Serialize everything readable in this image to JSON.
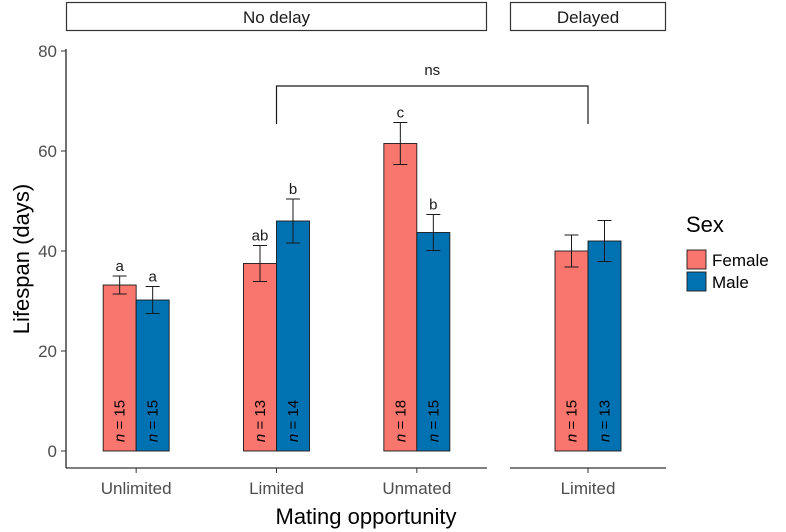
{
  "chart_data": {
    "type": "bar",
    "xlabel": "Mating opportunity",
    "ylabel": "Lifespan (days)",
    "ylim": [
      0,
      80
    ],
    "yticks": [
      0,
      20,
      40,
      60,
      80
    ],
    "grid": false,
    "legend": {
      "title": "Sex",
      "position": "right",
      "entries": [
        {
          "name": "Female",
          "color": "#F8766D"
        },
        {
          "name": "Male",
          "color": "#0072B2"
        }
      ]
    },
    "panels": [
      {
        "strip": "No delay",
        "categories": [
          "Unlimited",
          "Limited",
          "Unmated"
        ],
        "series": [
          {
            "name": "Female",
            "values": [
              33.2,
              37.5,
              61.5
            ],
            "error": [
              1.8,
              3.6,
              4.2
            ],
            "letters": [
              "a",
              "ab",
              "c"
            ],
            "n": [
              "15",
              "13",
              "18"
            ]
          },
          {
            "name": "Male",
            "values": [
              30.2,
              46.0,
              43.7
            ],
            "error": [
              2.7,
              4.4,
              3.6
            ],
            "letters": [
              "a",
              "b",
              "b"
            ],
            "n": [
              "15",
              "14",
              "15"
            ]
          }
        ]
      },
      {
        "strip": "Delayed",
        "categories": [
          "Limited"
        ],
        "series": [
          {
            "name": "Female",
            "values": [
              40.0
            ],
            "error": [
              3.2
            ],
            "letters": [
              ""
            ],
            "n": [
              "15"
            ]
          },
          {
            "name": "Male",
            "values": [
              42.0
            ],
            "error": [
              4.1
            ],
            "letters": [
              ""
            ],
            "n": [
              "13"
            ]
          }
        ]
      }
    ],
    "annotations": [
      {
        "text": "ns",
        "from": "No delay: Limited",
        "to": "Delayed: Limited",
        "y": 73
      }
    ]
  }
}
